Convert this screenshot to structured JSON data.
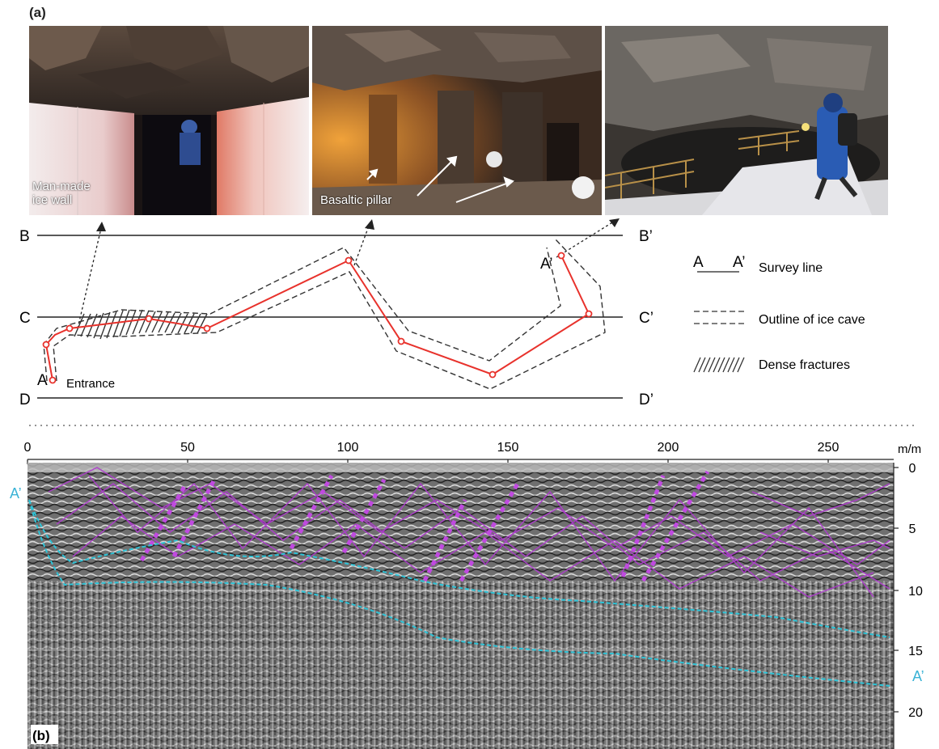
{
  "panels": {
    "a": "(a)",
    "b": "(b)"
  },
  "photos": [
    {
      "caption": "Man-made\nice wall",
      "caption_l1": "Man-made",
      "caption_l2": "ice wall"
    },
    {
      "caption": "Basaltic pillar"
    },
    {
      "caption": ""
    }
  ],
  "map": {
    "lines": [
      {
        "left": "B",
        "right": "B’"
      },
      {
        "left": "C",
        "right": "C’"
      },
      {
        "left": "D",
        "right": "D’"
      }
    ],
    "start_label": "A",
    "end_label": "A’",
    "entrance_label": "Entrance",
    "legend": {
      "survey_line_a": "A",
      "survey_line_b": "A’",
      "survey_line": "Survey line",
      "outline": "Outline of ice cave",
      "fractures": "Dense fractures"
    },
    "colors": {
      "survey": "#e8322c",
      "outline": "#333333"
    }
  },
  "radar": {
    "x_ticks": [
      "0",
      "50",
      "100",
      "150",
      "200",
      "250"
    ],
    "x_tick_values": [
      0,
      50,
      100,
      150,
      200,
      250
    ],
    "x_range": [
      0,
      265
    ],
    "y_unit": "m/m",
    "y_ticks": [
      "0",
      "5",
      "10",
      "15",
      "20"
    ],
    "y_tick_values": [
      0,
      5,
      10,
      15,
      20
    ],
    "y_range": [
      0,
      23
    ],
    "start_label": "A’",
    "end_label": "A’",
    "colors": {
      "fracture": "#b03bd0",
      "interface": "#2ec4d8",
      "label": "#3bb3d6"
    }
  }
}
